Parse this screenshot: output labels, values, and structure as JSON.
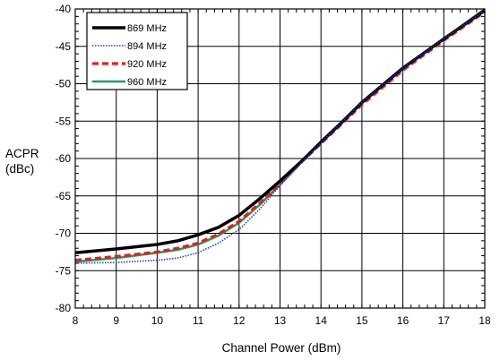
{
  "chart_data": {
    "type": "line",
    "title": "",
    "xlabel": "Channel Power (dBm)",
    "ylabel": [
      "ACPR",
      "(dBc)"
    ],
    "xlim": [
      8,
      18
    ],
    "ylim": [
      -80,
      -40
    ],
    "x_ticks": [
      8,
      9,
      10,
      11,
      12,
      13,
      14,
      15,
      16,
      17,
      18
    ],
    "y_ticks": [
      -80,
      -75,
      -70,
      -65,
      -60,
      -55,
      -50,
      -45,
      -40
    ],
    "y_minor_step": 1,
    "x_minor_step": 0.2,
    "grid": true,
    "legend_position": "top-left",
    "series": [
      {
        "name": "869 MHz",
        "color": "#000000",
        "style": "solid-thick",
        "x": [
          8,
          9,
          10,
          10.5,
          11,
          11.5,
          12,
          12.5,
          13,
          13.5,
          14,
          14.5,
          15,
          16,
          17,
          18
        ],
        "y": [
          -72.6,
          -72.1,
          -71.5,
          -71.0,
          -70.2,
          -69.2,
          -67.6,
          -65.4,
          -63.0,
          -60.5,
          -57.8,
          -55.2,
          -52.5,
          -47.9,
          -44.0,
          -40.2
        ]
      },
      {
        "name": "894 MHz",
        "color": "#1f3fd0",
        "style": "dotted",
        "x": [
          8,
          9,
          10,
          10.5,
          11,
          11.5,
          12,
          12.5,
          13,
          13.5,
          14,
          14.5,
          15,
          16,
          17,
          18
        ],
        "y": [
          -74.0,
          -73.9,
          -73.6,
          -73.3,
          -72.6,
          -71.3,
          -69.5,
          -66.8,
          -63.6,
          -60.7,
          -57.9,
          -55.2,
          -52.5,
          -47.9,
          -44.0,
          -40.2
        ]
      },
      {
        "name": "920 MHz",
        "color": "#e41e1e",
        "style": "dashed",
        "x": [
          8,
          9,
          10,
          10.5,
          11,
          11.5,
          12,
          12.5,
          13,
          13.5,
          14,
          14.5,
          15,
          16,
          17,
          18
        ],
        "y": [
          -73.6,
          -73.1,
          -72.5,
          -72.0,
          -71.3,
          -70.1,
          -68.4,
          -66.0,
          -63.4,
          -60.6,
          -58.0,
          -55.4,
          -52.8,
          -48.2,
          -44.2,
          -40.4
        ]
      },
      {
        "name": "960 MHz",
        "color": "#1fa05a",
        "style": "solid",
        "x": [
          8,
          9,
          10,
          10.5,
          11,
          11.5,
          12,
          12.5,
          13,
          13.5,
          14,
          14.5,
          15,
          16,
          17,
          18
        ],
        "y": [
          -73.8,
          -73.3,
          -72.6,
          -72.2,
          -71.5,
          -70.3,
          -68.6,
          -66.2,
          -63.5,
          -60.6,
          -57.9,
          -55.3,
          -52.6,
          -48.0,
          -44.0,
          -40.0
        ]
      }
    ]
  }
}
